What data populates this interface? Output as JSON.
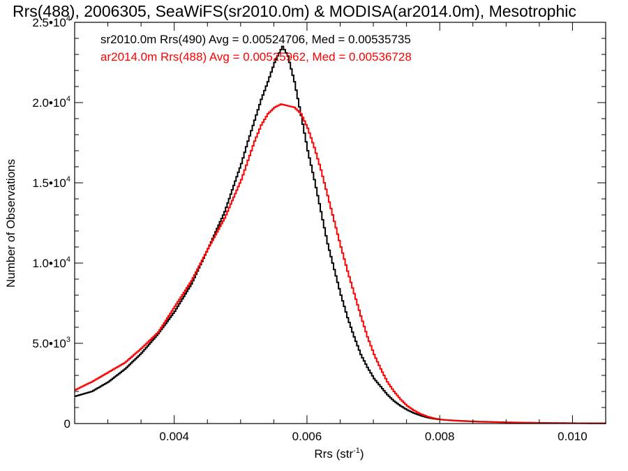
{
  "chart_data": {
    "type": "line",
    "step": true,
    "title": "Rrs(488), 2006305, SeaWiFS(sr2010.0m) & MODISA(ar2014.0m), Mesotrophic",
    "xlabel": "Rrs (str",
    "xlabel_sup": "-1",
    "xlabel_close": ")",
    "ylabel": "Number of Observations",
    "xlim": [
      0.0025,
      0.0105
    ],
    "ylim": [
      0,
      25000
    ],
    "grid": false,
    "x_ticks": [
      {
        "value": 0.004,
        "label": "0.004"
      },
      {
        "value": 0.006,
        "label": "0.006"
      },
      {
        "value": 0.008,
        "label": "0.008"
      },
      {
        "value": 0.01,
        "label": "0.010"
      }
    ],
    "y_ticks": [
      {
        "value": 0,
        "label": "0",
        "sup": ""
      },
      {
        "value": 5000,
        "label": "5.0•10",
        "sup": "3"
      },
      {
        "value": 10000,
        "label": "1.0•10",
        "sup": "4"
      },
      {
        "value": 15000,
        "label": "1.5•10",
        "sup": "4"
      },
      {
        "value": 20000,
        "label": "2.0•10",
        "sup": "4"
      },
      {
        "value": 25000,
        "label": "2.5•10",
        "sup": "4"
      }
    ],
    "legend": [
      {
        "text": "sr2010.0m Rrs(490) Avg = 0.00524706, Med = 0.00535735",
        "color": "#000000"
      },
      {
        "text": "ar2014.0m Rrs(488) Avg = 0.00525962, Med = 0.00536728",
        "color": "#ff0000"
      }
    ],
    "legend_position": "top-left",
    "series": [
      {
        "color": "#000000",
        "x": [
          0.0025,
          0.00275,
          0.003,
          0.00325,
          0.0035,
          0.00375,
          0.004,
          0.00425,
          0.0045,
          0.00475,
          0.005,
          0.0051,
          0.0052,
          0.0053,
          0.0054,
          0.0055,
          0.00562,
          0.0057,
          0.0058,
          0.0059,
          0.006,
          0.0061,
          0.0062,
          0.0063,
          0.0064,
          0.0065,
          0.0066,
          0.0067,
          0.0068,
          0.0069,
          0.007,
          0.0071,
          0.0072,
          0.0073,
          0.0074,
          0.0075,
          0.0076,
          0.0077,
          0.0078,
          0.0079,
          0.008,
          0.0082,
          0.0084,
          0.0086,
          0.0088,
          0.009,
          0.0092,
          0.0094,
          0.0096,
          0.0098,
          0.01,
          0.0102,
          0.0105
        ],
        "y": [
          1700,
          2000,
          2600,
          3400,
          4400,
          5600,
          7000,
          8700,
          10900,
          13200,
          16200,
          17600,
          18900,
          20200,
          21300,
          22500,
          23500,
          22900,
          21300,
          19200,
          17000,
          15200,
          13200,
          11200,
          9600,
          8000,
          6600,
          5400,
          4300,
          3500,
          2800,
          2300,
          1800,
          1400,
          1100,
          850,
          650,
          500,
          380,
          300,
          250,
          190,
          150,
          120,
          100,
          80,
          60,
          50,
          40,
          30,
          25,
          20,
          15
        ]
      },
      {
        "color": "#ff0000",
        "x": [
          0.0025,
          0.00275,
          0.003,
          0.00325,
          0.0035,
          0.00375,
          0.004,
          0.00425,
          0.0045,
          0.00475,
          0.005,
          0.0051,
          0.0052,
          0.0053,
          0.0054,
          0.0055,
          0.0056,
          0.0057,
          0.0058,
          0.0059,
          0.006,
          0.0061,
          0.0062,
          0.0063,
          0.0064,
          0.0065,
          0.0066,
          0.0067,
          0.0068,
          0.0069,
          0.007,
          0.0071,
          0.0072,
          0.0073,
          0.0074,
          0.0075,
          0.0076,
          0.0077,
          0.0078,
          0.0079,
          0.008,
          0.0082,
          0.0084,
          0.0086,
          0.0088,
          0.009,
          0.0092,
          0.0094,
          0.0096,
          0.0098,
          0.01,
          0.0102,
          0.0105
        ],
        "y": [
          2100,
          2600,
          3200,
          3800,
          4700,
          5700,
          7300,
          8900,
          10900,
          12800,
          15200,
          16400,
          17600,
          18600,
          19300,
          19700,
          19900,
          19800,
          19700,
          19300,
          18400,
          17200,
          15800,
          14200,
          12600,
          11000,
          9500,
          8100,
          6700,
          5400,
          4300,
          3400,
          2600,
          2000,
          1500,
          1100,
          820,
          600,
          440,
          330,
          250,
          180,
          140,
          110,
          90,
          70,
          55,
          45,
          35,
          28,
          22,
          18,
          14
        ]
      }
    ]
  }
}
